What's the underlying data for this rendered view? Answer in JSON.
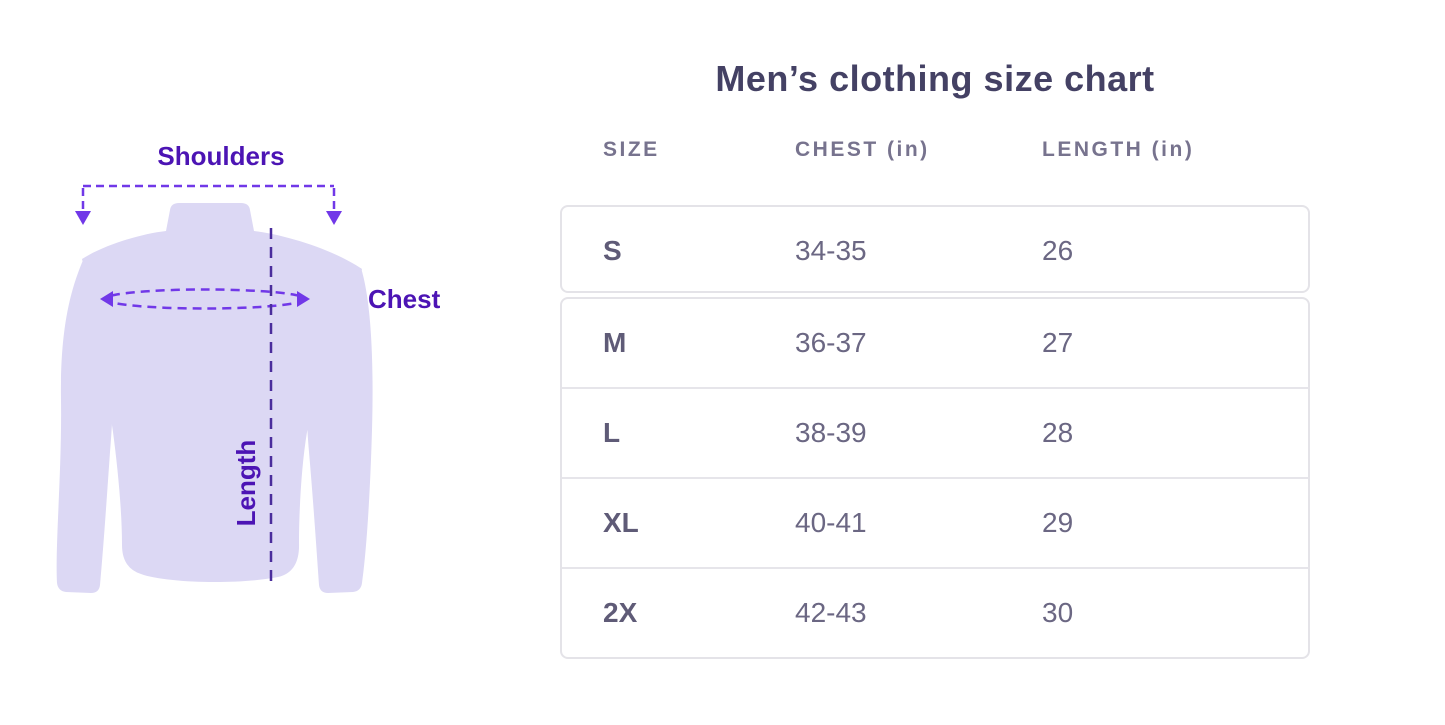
{
  "title": "Men’s clothing size chart",
  "diagram": {
    "shoulders_label": "Shoulders",
    "chest_label": "Chest",
    "length_label": "Length",
    "shirt_color": "#dcd8f4",
    "annotation_color": "#7138e8",
    "length_line_color": "#4a2d9c",
    "label_color": "#4c14b4"
  },
  "table": {
    "headers": [
      {
        "label": "SIZE"
      },
      {
        "label": "CHEST (in)"
      },
      {
        "label": "LENGTH (in)"
      }
    ],
    "rows": [
      {
        "size": "S",
        "chest": "34-35",
        "length": "26"
      },
      {
        "size": "M",
        "chest": "36-37",
        "length": "27"
      },
      {
        "size": "L",
        "chest": "38-39",
        "length": "28"
      },
      {
        "size": "XL",
        "chest": "40-41",
        "length": "29"
      },
      {
        "size": "2X",
        "chest": "42-43",
        "length": "30"
      }
    ]
  },
  "chart_data": {
    "type": "table",
    "title": "Men’s clothing size chart",
    "columns": [
      "SIZE",
      "CHEST (in)",
      "LENGTH (in)"
    ],
    "rows": [
      [
        "S",
        "34-35",
        "26"
      ],
      [
        "M",
        "36-37",
        "27"
      ],
      [
        "L",
        "38-39",
        "28"
      ],
      [
        "XL",
        "40-41",
        "29"
      ],
      [
        "2X",
        "42-43",
        "30"
      ]
    ]
  }
}
